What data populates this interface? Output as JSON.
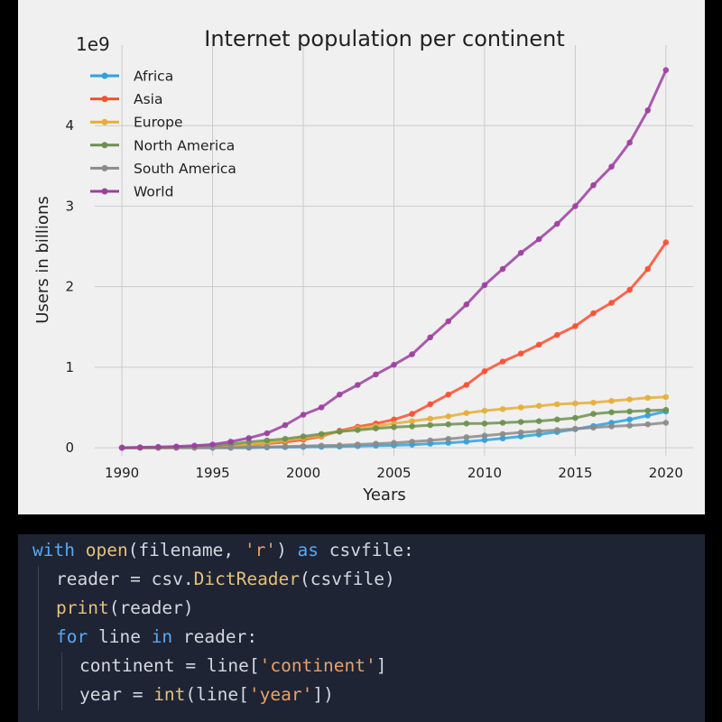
{
  "chart_data": {
    "type": "line",
    "title": "Internet population per continent",
    "xlabel": "Years",
    "ylabel": "Users in billions",
    "offset_text": "1e9",
    "xlim": [
      1988.5,
      2021.5
    ],
    "ylim": [
      -0.1,
      5.0
    ],
    "x_ticks": [
      1990,
      1995,
      2000,
      2005,
      2010,
      2015,
      2020
    ],
    "y_ticks": [
      0,
      1,
      2,
      3,
      4
    ],
    "grid": true,
    "legend_position": "top-left",
    "x": [
      1990,
      1991,
      1992,
      1993,
      1994,
      1995,
      1996,
      1997,
      1998,
      1999,
      2000,
      2001,
      2002,
      2003,
      2004,
      2005,
      2006,
      2007,
      2008,
      2009,
      2010,
      2011,
      2012,
      2013,
      2014,
      2015,
      2016,
      2017,
      2018,
      2019,
      2020
    ],
    "series": [
      {
        "name": "Africa",
        "color": "#30a2da",
        "values": [
          0,
          0,
          0,
          0,
          0,
          0,
          0,
          0,
          0.005,
          0.007,
          0.01,
          0.012,
          0.015,
          0.02,
          0.025,
          0.03,
          0.038,
          0.05,
          0.06,
          0.075,
          0.095,
          0.115,
          0.14,
          0.165,
          0.195,
          0.23,
          0.27,
          0.31,
          0.35,
          0.4,
          0.45
        ]
      },
      {
        "name": "Asia",
        "color": "#fc4f30",
        "values": [
          0,
          0,
          0,
          0,
          0.005,
          0.01,
          0.02,
          0.03,
          0.05,
          0.07,
          0.1,
          0.14,
          0.21,
          0.26,
          0.3,
          0.35,
          0.42,
          0.54,
          0.66,
          0.78,
          0.95,
          1.07,
          1.17,
          1.28,
          1.4,
          1.51,
          1.67,
          1.8,
          1.96,
          2.22,
          2.55
        ]
      },
      {
        "name": "Europe",
        "color": "#e5ae38",
        "values": [
          0,
          0,
          0,
          0,
          0.005,
          0.01,
          0.02,
          0.035,
          0.06,
          0.09,
          0.12,
          0.15,
          0.2,
          0.24,
          0.27,
          0.3,
          0.33,
          0.36,
          0.39,
          0.43,
          0.46,
          0.48,
          0.5,
          0.52,
          0.54,
          0.55,
          0.56,
          0.58,
          0.6,
          0.62,
          0.63
        ]
      },
      {
        "name": "North America",
        "color": "#6d904f",
        "values": [
          0,
          0,
          0,
          0.005,
          0.015,
          0.025,
          0.045,
          0.07,
          0.09,
          0.11,
          0.14,
          0.17,
          0.2,
          0.22,
          0.24,
          0.255,
          0.265,
          0.28,
          0.29,
          0.3,
          0.3,
          0.31,
          0.32,
          0.33,
          0.35,
          0.37,
          0.42,
          0.44,
          0.45,
          0.46,
          0.47
        ]
      },
      {
        "name": "South America",
        "color": "#8b8b8b",
        "values": [
          0,
          0,
          0,
          0,
          0,
          0,
          0,
          0.005,
          0.01,
          0.015,
          0.02,
          0.025,
          0.03,
          0.04,
          0.05,
          0.06,
          0.075,
          0.09,
          0.11,
          0.13,
          0.15,
          0.17,
          0.19,
          0.205,
          0.22,
          0.235,
          0.25,
          0.265,
          0.275,
          0.29,
          0.31
        ]
      },
      {
        "name": "World",
        "color": "#9c3fa0",
        "values": [
          0,
          0.005,
          0.01,
          0.015,
          0.025,
          0.04,
          0.075,
          0.12,
          0.18,
          0.28,
          0.41,
          0.5,
          0.66,
          0.78,
          0.91,
          1.03,
          1.16,
          1.37,
          1.57,
          1.78,
          2.02,
          2.22,
          2.42,
          2.59,
          2.78,
          3.0,
          3.26,
          3.49,
          3.79,
          4.19,
          4.69
        ]
      }
    ]
  },
  "code": {
    "lines": [
      [
        {
          "t": "with",
          "c": "kw"
        },
        {
          "t": " ",
          "c": "tx"
        },
        {
          "t": "open",
          "c": "fn"
        },
        {
          "t": "(filename, ",
          "c": "tx"
        },
        {
          "t": "'r'",
          "c": "st"
        },
        {
          "t": ") ",
          "c": "tx"
        },
        {
          "t": "as",
          "c": "kw"
        },
        {
          "t": " csvfile:",
          "c": "tx"
        }
      ],
      [
        {
          "t": "reader = csv.",
          "c": "tx"
        },
        {
          "t": "DictReader",
          "c": "fn"
        },
        {
          "t": "(csvfile)",
          "c": "tx"
        }
      ],
      [
        {
          "t": "print",
          "c": "fn"
        },
        {
          "t": "(reader)",
          "c": "tx"
        }
      ],
      [
        {
          "t": "for",
          "c": "kw"
        },
        {
          "t": " line ",
          "c": "tx"
        },
        {
          "t": "in",
          "c": "kw"
        },
        {
          "t": " reader:",
          "c": "tx"
        }
      ],
      [
        {
          "t": "continent = line[",
          "c": "tx"
        },
        {
          "t": "'continent'",
          "c": "st"
        },
        {
          "t": "]",
          "c": "tx"
        }
      ],
      [
        {
          "t": "year = ",
          "c": "tx"
        },
        {
          "t": "int",
          "c": "fn"
        },
        {
          "t": "(line[",
          "c": "tx"
        },
        {
          "t": "'year'",
          "c": "st"
        },
        {
          "t": "])",
          "c": "tx"
        }
      ]
    ],
    "indents": [
      0,
      1,
      1,
      1,
      2,
      2
    ],
    "colors": {
      "kw": "#56a8f5",
      "fn": "#e5c07b",
      "st": "#e8a06a",
      "tx": "#d4d7df"
    }
  }
}
